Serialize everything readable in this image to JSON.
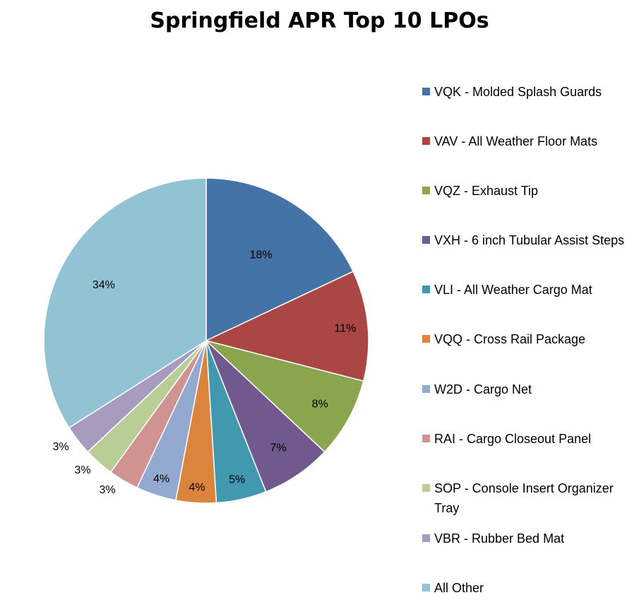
{
  "chart_data": {
    "type": "pie",
    "title": "Springfield APR Top 10 LPOs",
    "legend_position": "right",
    "slices": [
      {
        "label": "VQK - Molded Splash Guards",
        "value": 18,
        "color": "#4572A7",
        "display": "18%"
      },
      {
        "label": "VAV - All Weather Floor Mats",
        "value": 11,
        "color": "#AA4643",
        "display": "11%"
      },
      {
        "label": "VQZ - Exhaust Tip",
        "value": 8,
        "color": "#89A54E",
        "display": "8%"
      },
      {
        "label": "VXH - 6 inch Tubular Assist Steps",
        "value": 7,
        "color": "#71588F",
        "display": "7%"
      },
      {
        "label": "VLI - All Weather Cargo Mat",
        "value": 5,
        "color": "#4198AF",
        "display": "5%"
      },
      {
        "label": "VQQ - Cross Rail Package",
        "value": 4,
        "color": "#DB843D",
        "display": "4%"
      },
      {
        "label": "W2D - Cargo Net",
        "value": 4,
        "color": "#93A9CF",
        "display": "4%"
      },
      {
        "label": "RAI - Cargo Closeout Panel",
        "value": 3,
        "color": "#D19392",
        "display": "3%"
      },
      {
        "label": "SOP - Console Insert Organizer Tray",
        "value": 3,
        "color": "#B9CD96",
        "display": "3%"
      },
      {
        "label": "VBR - Rubber Bed Mat",
        "value": 3,
        "color": "#A99BBD",
        "display": "3%"
      },
      {
        "label": "All Other",
        "value": 34,
        "color": "#92C3D5",
        "display": "34%"
      }
    ]
  }
}
